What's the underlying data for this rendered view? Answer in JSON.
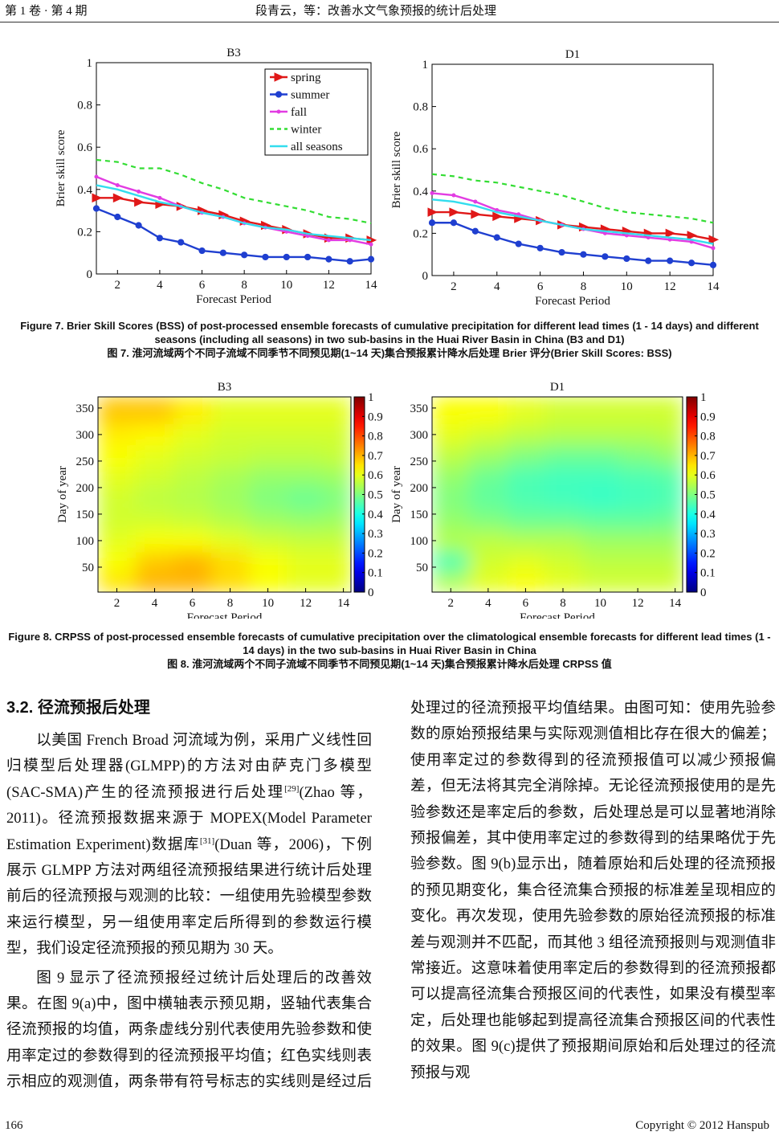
{
  "header": {
    "left": "第 1 卷 · 第 4 期",
    "center": "段青云，等：改善水文气象预报的统计后处理"
  },
  "chart_data": [
    {
      "type": "line",
      "title": "B3",
      "xlabel": "Forecast Period",
      "ylabel": "Brier skill score",
      "x": [
        1,
        2,
        3,
        4,
        5,
        6,
        7,
        8,
        9,
        10,
        11,
        12,
        13,
        14
      ],
      "xlim": [
        1,
        14
      ],
      "ylim": [
        0,
        1
      ],
      "xticks": [
        2,
        4,
        6,
        8,
        10,
        12,
        14
      ],
      "yticks": [
        0,
        0.2,
        0.4,
        0.6,
        0.8,
        1
      ],
      "legend": "top-right",
      "series": [
        {
          "name": "spring",
          "color": "#e01818",
          "marker": "triangle",
          "dash": false,
          "values": [
            0.36,
            0.36,
            0.34,
            0.33,
            0.32,
            0.3,
            0.28,
            0.25,
            0.23,
            0.21,
            0.19,
            0.17,
            0.17,
            0.16
          ]
        },
        {
          "name": "summer",
          "color": "#1f3fd0",
          "marker": "circle",
          "dash": false,
          "values": [
            0.31,
            0.27,
            0.23,
            0.17,
            0.15,
            0.11,
            0.1,
            0.09,
            0.08,
            0.08,
            0.08,
            0.07,
            0.06,
            0.07
          ]
        },
        {
          "name": "fall",
          "color": "#e23ce2",
          "marker": "dot",
          "dash": false,
          "values": [
            0.46,
            0.42,
            0.39,
            0.36,
            0.32,
            0.29,
            0.27,
            0.24,
            0.22,
            0.2,
            0.18,
            0.16,
            0.16,
            0.14
          ]
        },
        {
          "name": "winter",
          "color": "#33dd33",
          "marker": "none",
          "dash": true,
          "values": [
            0.54,
            0.53,
            0.5,
            0.5,
            0.47,
            0.43,
            0.4,
            0.36,
            0.34,
            0.32,
            0.3,
            0.27,
            0.26,
            0.24
          ]
        },
        {
          "name": "all seasons",
          "color": "#33ddee",
          "marker": "none",
          "dash": false,
          "values": [
            0.42,
            0.4,
            0.37,
            0.34,
            0.32,
            0.29,
            0.27,
            0.24,
            0.22,
            0.21,
            0.19,
            0.18,
            0.17,
            0.16
          ]
        }
      ]
    },
    {
      "type": "line",
      "title": "D1",
      "xlabel": "Forecast Period",
      "ylabel": "Brier skill score",
      "x": [
        1,
        2,
        3,
        4,
        5,
        6,
        7,
        8,
        9,
        10,
        11,
        12,
        13,
        14
      ],
      "xlim": [
        1,
        14
      ],
      "ylim": [
        0,
        1
      ],
      "xticks": [
        2,
        4,
        6,
        8,
        10,
        12,
        14
      ],
      "yticks": [
        0,
        0.2,
        0.4,
        0.6,
        0.8,
        1
      ],
      "series": [
        {
          "color": "#e01818",
          "marker": "triangle",
          "dash": false,
          "values": [
            0.3,
            0.3,
            0.29,
            0.28,
            0.27,
            0.26,
            0.24,
            0.23,
            0.22,
            0.21,
            0.2,
            0.2,
            0.19,
            0.17
          ]
        },
        {
          "color": "#1f3fd0",
          "marker": "circle",
          "dash": false,
          "values": [
            0.25,
            0.25,
            0.21,
            0.18,
            0.15,
            0.13,
            0.11,
            0.1,
            0.09,
            0.08,
            0.07,
            0.07,
            0.06,
            0.05
          ]
        },
        {
          "color": "#e23ce2",
          "marker": "dot",
          "dash": false,
          "values": [
            0.39,
            0.38,
            0.35,
            0.31,
            0.29,
            0.26,
            0.24,
            0.22,
            0.2,
            0.19,
            0.18,
            0.17,
            0.16,
            0.13
          ]
        },
        {
          "color": "#33dd33",
          "marker": "none",
          "dash": true,
          "values": [
            0.48,
            0.47,
            0.45,
            0.44,
            0.42,
            0.4,
            0.38,
            0.35,
            0.32,
            0.3,
            0.29,
            0.28,
            0.27,
            0.25
          ]
        },
        {
          "color": "#33ddee",
          "marker": "none",
          "dash": false,
          "values": [
            0.36,
            0.35,
            0.33,
            0.3,
            0.28,
            0.26,
            0.24,
            0.22,
            0.21,
            0.2,
            0.19,
            0.18,
            0.17,
            0.15
          ]
        }
      ]
    },
    {
      "type": "heatmap",
      "title": "B3",
      "xlabel": "Forecast Period",
      "ylabel": "Day of year",
      "colormap": "jet",
      "x": [
        2,
        4,
        6,
        8,
        10,
        12,
        14
      ],
      "y": [
        20,
        60,
        100,
        140,
        180,
        220,
        260,
        300,
        340
      ],
      "xlim": [
        1,
        14.4
      ],
      "ylim": [
        3,
        371
      ],
      "xticks": [
        2,
        4,
        6,
        8,
        10,
        12,
        14
      ],
      "yticks": [
        50,
        100,
        150,
        200,
        250,
        300,
        350
      ],
      "clim": [
        0,
        1
      ],
      "cticks": [
        0,
        0.1,
        0.2,
        0.3,
        0.4,
        0.5,
        0.6,
        0.7,
        0.8,
        0.9,
        1
      ],
      "values": [
        [
          0.65,
          0.7,
          0.7,
          0.66,
          0.62,
          0.6,
          0.6
        ],
        [
          0.62,
          0.68,
          0.7,
          0.66,
          0.62,
          0.6,
          0.6
        ],
        [
          0.6,
          0.62,
          0.62,
          0.6,
          0.58,
          0.57,
          0.57
        ],
        [
          0.58,
          0.58,
          0.57,
          0.55,
          0.53,
          0.52,
          0.53
        ],
        [
          0.58,
          0.56,
          0.55,
          0.53,
          0.5,
          0.48,
          0.5
        ],
        [
          0.6,
          0.58,
          0.56,
          0.54,
          0.52,
          0.52,
          0.53
        ],
        [
          0.62,
          0.6,
          0.58,
          0.57,
          0.56,
          0.56,
          0.57
        ],
        [
          0.64,
          0.63,
          0.6,
          0.58,
          0.58,
          0.58,
          0.58
        ],
        [
          0.68,
          0.68,
          0.64,
          0.6,
          0.6,
          0.6,
          0.6
        ]
      ]
    },
    {
      "type": "heatmap",
      "title": "D1",
      "xlabel": "Forecast Period",
      "ylabel": "Day of year",
      "colormap": "jet",
      "x": [
        2,
        4,
        6,
        8,
        10,
        12,
        14
      ],
      "y": [
        20,
        60,
        100,
        140,
        180,
        220,
        260,
        300,
        340
      ],
      "xlim": [
        1,
        14.4
      ],
      "ylim": [
        3,
        371
      ],
      "xticks": [
        2,
        4,
        6,
        8,
        10,
        12,
        14
      ],
      "yticks": [
        50,
        100,
        150,
        200,
        250,
        300,
        350
      ],
      "clim": [
        0,
        1
      ],
      "cticks": [
        0,
        0.1,
        0.2,
        0.3,
        0.4,
        0.5,
        0.6,
        0.7,
        0.8,
        0.9,
        1
      ],
      "values": [
        [
          0.55,
          0.6,
          0.62,
          0.6,
          0.58,
          0.58,
          0.58
        ],
        [
          0.45,
          0.58,
          0.6,
          0.58,
          0.56,
          0.56,
          0.56
        ],
        [
          0.55,
          0.56,
          0.55,
          0.55,
          0.53,
          0.53,
          0.53
        ],
        [
          0.52,
          0.5,
          0.48,
          0.48,
          0.47,
          0.47,
          0.48
        ],
        [
          0.5,
          0.47,
          0.45,
          0.44,
          0.43,
          0.44,
          0.45
        ],
        [
          0.52,
          0.48,
          0.45,
          0.44,
          0.44,
          0.45,
          0.46
        ],
        [
          0.56,
          0.53,
          0.5,
          0.48,
          0.48,
          0.5,
          0.52
        ],
        [
          0.6,
          0.58,
          0.56,
          0.55,
          0.55,
          0.55,
          0.56
        ],
        [
          0.62,
          0.62,
          0.6,
          0.58,
          0.58,
          0.58,
          0.58
        ]
      ]
    }
  ],
  "figure7_caption": [
    "Figure 7. Brier Skill Scores (BSS) of post-processed ensemble forecasts of cumulative precipitation for different lead times (1 - 14 days) and different seasons (including all seasons) in two sub-basins in the Huai River Basin in China (B3 and D1)",
    "图 7. 淮河流域两个不同子流域不同季节不同预见期(1~14 天)集合预报累计降水后处理 Brier 评分(Brier Skill Scores: BSS)"
  ],
  "figure8_caption": [
    "Figure 8. CRPSS of post-processed ensemble forecasts of cumulative precipitation over the climatological ensemble forecasts for different lead times (1 - 14 days) in the two sub-basins in Huai River Basin in China",
    "图 8. 淮河流域两个不同子流域不同季节不同预见期(1~14 天)集合预报累计降水后处理 CRPSS 值"
  ],
  "section": {
    "heading": "3.2. 径流预报后处理",
    "paragraphs": [
      [
        "以美国 French Broad 河流域为例，采用广义线性回归模型后处理器(GLMPP)的方法对由萨克门多模型(SAC-SMA)产生的径流预报进行后处理",
        "[29]",
        "(Zhao 等，2011)。径流预报数据来源于 MOPEX(Model Parameter Estimation Experiment)数据库",
        "[31]",
        "(Duan 等，2006)，下例展示 GLMPP 方法对两组径流预报结果进行统计后处理前后的径流预报与观测的比较：一组使用先验模型参数来运行模型，另一组使用率定后所得到的参数运行模型，我们设定径流预报的预见期为 30 天。"
      ],
      [
        "图 9 显示了径流预报经过统计后处理后的改善效果。在图 9(a)中，图中横轴表示预见期，竖轴代表集合径流预报的均值，两条虚线分别代表使用先验参数和使用率定过的参数得到的径流预报平均值；红色实线则表示相应的观测值，两条带有符号标志的实线则是经过后处理过的径流预报平均值结果。由图可知：使用先验参数的原始预报结果与实际观测值相比存在很大的偏差；使用率定过的参数得到的径流预报值可以减少预报偏差，但无法将其完全消除掉。无论径流预报使用的是先验参数还是率定后的参数，后处理总是可以显著地消除预报偏差，其中使用率定过的参数得到的结果略优于先验参数。图 9(b)显示出，随着原始和后处理的径流预报的预见期变化，集合径流集合预报的标准差呈现相应的变化。再次发现，使用先验参数的原始径流预报的标准差与观测并不匹配，而其他 3 组径流预报则与观测值非常接近。这意味着使用率定后的参数得到的径流预报都可以提高径流集合预报区间的代表性，如果没有模型率定，后处理也能够起到提高径流集合预报区间的代表性的效果。图 9(c)提供了预报期间原始和后处理过的径流预报与观"
      ]
    ]
  },
  "footer": {
    "page": "166",
    "copyright": "Copyright © 2012 Hanspub"
  }
}
